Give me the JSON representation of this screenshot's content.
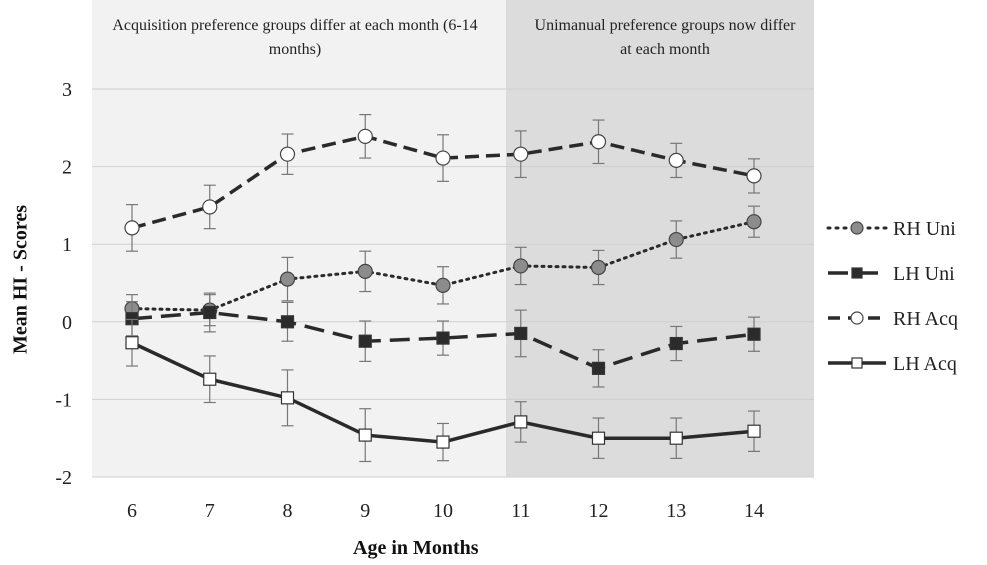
{
  "chart_data": {
    "type": "line",
    "xlabel": "Age in Months",
    "ylabel": "Mean  HI - Scores",
    "x": [
      6,
      7,
      8,
      9,
      10,
      11,
      12,
      13,
      14
    ],
    "ylim": [
      -2,
      3
    ],
    "yticks": [
      -2,
      -1,
      0,
      1,
      2,
      3
    ],
    "grid": true,
    "legend_position": "right",
    "annotations": [
      {
        "text": "Acquisition preference groups differ at each month (6-14 months)",
        "region": "months 6-11"
      },
      {
        "text": "Unimanual preference groups now differ at each month",
        "region": "months 11-14"
      }
    ],
    "series": [
      {
        "name": "RH Uni",
        "style": "dotted",
        "marker": "filled-circle",
        "values": [
          0.17,
          0.15,
          0.55,
          0.65,
          0.47,
          0.72,
          0.7,
          1.06,
          1.29
        ],
        "errors": [
          0.18,
          0.2,
          0.28,
          0.26,
          0.24,
          0.24,
          0.22,
          0.24,
          0.2
        ]
      },
      {
        "name": "LH Uni",
        "style": "dashed",
        "marker": "filled-square",
        "values": [
          0.04,
          0.12,
          0.0,
          -0.25,
          -0.21,
          -0.15,
          -0.6,
          -0.28,
          -0.16
        ],
        "errors": [
          0.22,
          0.25,
          0.25,
          0.26,
          0.22,
          0.3,
          0.24,
          0.22,
          0.22
        ]
      },
      {
        "name": "RH Acq",
        "style": "long-dashed",
        "marker": "open-circle",
        "values": [
          1.21,
          1.48,
          2.16,
          2.39,
          2.11,
          2.16,
          2.32,
          2.08,
          1.88
        ],
        "errors": [
          0.3,
          0.28,
          0.26,
          0.28,
          0.3,
          0.3,
          0.28,
          0.22,
          0.22
        ]
      },
      {
        "name": "LH Acq",
        "style": "solid",
        "marker": "open-square",
        "values": [
          -0.27,
          -0.74,
          -0.98,
          -1.46,
          -1.55,
          -1.29,
          -1.5,
          -1.5,
          -1.41
        ],
        "errors": [
          0.3,
          0.3,
          0.36,
          0.34,
          0.24,
          0.26,
          0.26,
          0.26,
          0.26
        ]
      }
    ]
  }
}
